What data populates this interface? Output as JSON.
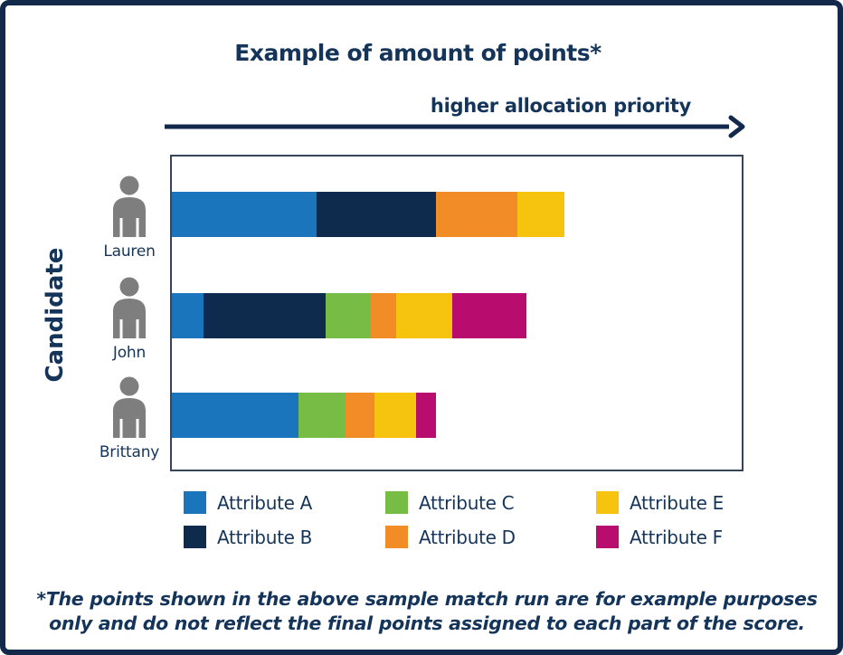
{
  "title": "Example of amount of points*",
  "arrow_label": "higher allocation priority",
  "y_axis_label": "Candidate",
  "footnote": {
    "line1": "*The points shown in the above sample match run are for example purposes",
    "line2": "only and do not reflect the final points assigned to each part of the score."
  },
  "colors": {
    "frame_border": "#13294B",
    "text_navy": "#15345A",
    "plot_border": "#36455A",
    "person_gray": "#7E7E7E"
  },
  "chart_data": {
    "type": "bar",
    "orientation": "horizontal",
    "stacked": true,
    "title": "Example of amount of points*",
    "xlabel": "higher allocation priority",
    "ylabel": "Candidate",
    "axis_ticks_shown": false,
    "values_unit": "relative points (no numeric axis shown; values estimated proportionally from bar lengths)",
    "categories": [
      "Lauren",
      "John",
      "Brittany"
    ],
    "series": [
      {
        "name": "Attribute A",
        "color": "#1B75BC",
        "values": [
          160,
          35,
          140
        ]
      },
      {
        "name": "Attribute B",
        "color": "#0E2A4D",
        "values": [
          132,
          135,
          0
        ]
      },
      {
        "name": "Attribute C",
        "color": "#77BC44",
        "values": [
          0,
          50,
          52
        ]
      },
      {
        "name": "Attribute D",
        "color": "#F28C26",
        "values": [
          90,
          28,
          32
        ]
      },
      {
        "name": "Attribute E",
        "color": "#F6C40F",
        "values": [
          52,
          62,
          46
        ]
      },
      {
        "name": "Attribute F",
        "color": "#B90C6F",
        "values": [
          0,
          82,
          22
        ]
      }
    ],
    "bar_totals": [
      434,
      392,
      292
    ],
    "legend_order": [
      [
        "Attribute A",
        "Attribute B"
      ],
      [
        "Attribute C",
        "Attribute D"
      ],
      [
        "Attribute E",
        "Attribute F"
      ]
    ],
    "legend_position": "bottom"
  }
}
